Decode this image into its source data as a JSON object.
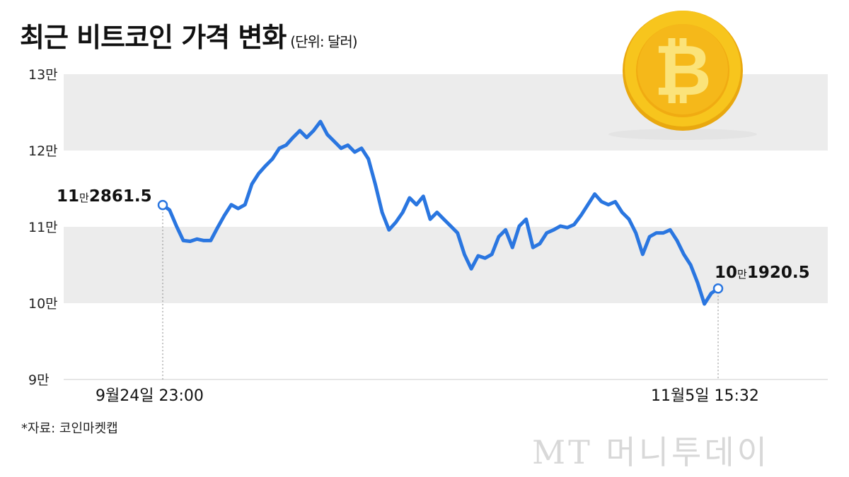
{
  "title": "최근 비트코인 가격 변화",
  "unit": "(단위: 달러)",
  "source": "*자료: 코인마켓캡",
  "watermark": "MT 머니투데이",
  "colors": {
    "line": "#2a76e0",
    "band": "#ececec",
    "coin": "#f5c21b"
  },
  "coin_icon": "bitcoin-coin",
  "chart_data": {
    "type": "line",
    "title": "최근 비트코인 가격 변화",
    "ylabel": "",
    "xlabel": "",
    "ylim": [
      90000,
      130000
    ],
    "yticks": [
      {
        "value": 130000,
        "label": "13만"
      },
      {
        "value": 120000,
        "label": "12만"
      },
      {
        "value": 110000,
        "label": "11만"
      },
      {
        "value": 100000,
        "label": "10만"
      },
      {
        "value": 90000,
        "label": "9만"
      }
    ],
    "xticks": [
      "9월24일 23:00",
      "11월5일 15:32"
    ],
    "grid": "alternating horizontal bands",
    "start": {
      "label_major": "11",
      "label_unit": "만",
      "label_minor": "2861.5",
      "value": 112861.5
    },
    "end": {
      "label_major": "10",
      "label_unit": "만",
      "label_minor": "1920.5",
      "value": 101920.5
    },
    "values": [
      112861.5,
      112200,
      110100,
      108200,
      108100,
      108400,
      108200,
      108200,
      109900,
      111500,
      112900,
      112400,
      112900,
      115600,
      117000,
      118000,
      118900,
      120300,
      120700,
      121700,
      122600,
      121700,
      122600,
      123800,
      122100,
      121200,
      120300,
      120700,
      119800,
      120300,
      118900,
      115600,
      111900,
      109600,
      110600,
      111900,
      113800,
      112900,
      114000,
      111000,
      111900,
      111000,
      110100,
      109200,
      106400,
      104500,
      106200,
      105900,
      106400,
      108700,
      109600,
      107300,
      110100,
      111000,
      107300,
      107800,
      109200,
      109600,
      110100,
      109900,
      110300,
      111500,
      112900,
      114300,
      113300,
      112900,
      113300,
      111900,
      111000,
      109200,
      106400,
      108700,
      109200,
      109200,
      109600,
      108200,
      106400,
      105000,
      102700,
      99900,
      101300,
      101920.5
    ]
  }
}
